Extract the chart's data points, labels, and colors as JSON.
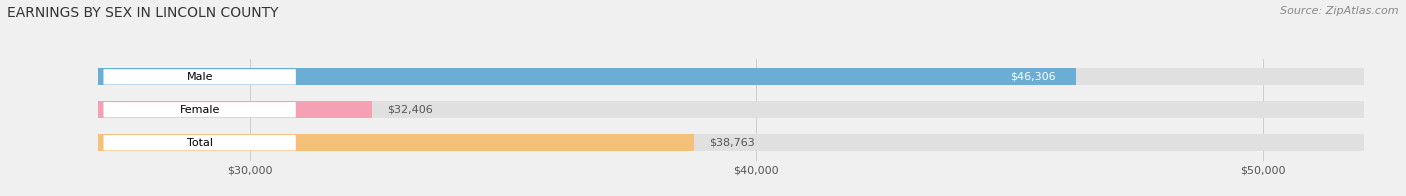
{
  "title": "EARNINGS BY SEX IN LINCOLN COUNTY",
  "source": "Source: ZipAtlas.com",
  "categories": [
    "Male",
    "Female",
    "Total"
  ],
  "values": [
    46306,
    32406,
    38763
  ],
  "bar_colors": [
    "#6aaed6",
    "#f4a0b5",
    "#f5c07a"
  ],
  "bar_labels": [
    "$46,306",
    "$32,406",
    "$38,763"
  ],
  "xmin": 27000,
  "xmax": 52000,
  "xticks": [
    30000,
    40000,
    50000
  ],
  "xtick_labels": [
    "$30,000",
    "$40,000",
    "$50,000"
  ],
  "title_fontsize": 10,
  "source_fontsize": 8,
  "tick_fontsize": 8,
  "bar_label_fontsize": 8,
  "cat_label_fontsize": 8,
  "background_color": "#f0f0f0",
  "bar_bg_color": "#e0e0e0",
  "bar_height": 0.52
}
